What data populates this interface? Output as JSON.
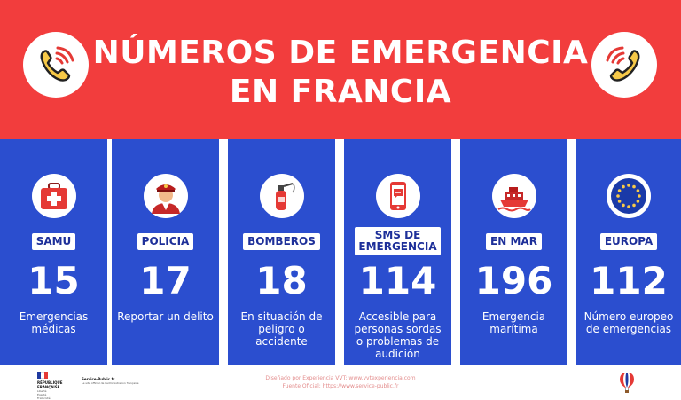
{
  "header": {
    "title_line1": "NÚMEROS DE EMERGENCIA",
    "title_line2": "EN FRANCIA",
    "icon": "phone-ringing-icon",
    "bg_color": "#f23d3d"
  },
  "columns": [
    {
      "label": "SAMU",
      "number": "15",
      "description": "Emergencias médicas",
      "icon": "first-aid-kit-icon"
    },
    {
      "label": "POLICIA",
      "number": "17",
      "description": "Reportar un delito",
      "icon": "police-officer-icon"
    },
    {
      "label": "BOMBEROS",
      "number": "18",
      "description": "En situación de peligro o accidente",
      "icon": "fire-extinguisher-icon"
    },
    {
      "label_line1": "SMS DE",
      "label_line2": "EMERGENCIA",
      "number": "114",
      "description": "Accesible para personas sordas o problemas de audición",
      "icon": "sms-phone-icon"
    },
    {
      "label": "EN MAR",
      "number": "196",
      "description": "Emergencia marítima",
      "icon": "ship-icon"
    },
    {
      "label": "EUROPA",
      "number": "112",
      "description": "Número europeo de emergencias",
      "icon": "eu-flag-icon"
    }
  ],
  "colors": {
    "column_blue": "#2b4ecf",
    "label_text": "#1d2f99",
    "credits_text": "#e38d8d"
  },
  "footer": {
    "rf_line1": "RÉPUBLIQUE",
    "rf_line2": "FRANÇAISE",
    "rf_motto_1": "Liberté",
    "rf_motto_2": "Égalité",
    "rf_motto_3": "Fraternité",
    "sp_name": "Service-Public.fr",
    "sp_sub": "Le site officiel de l'administration française",
    "credit_line1": "Diseñado por Experiencia VVT: www.vvtexperiencia.com",
    "credit_line2": "Fuente Oficial: https://www.service-public.fr",
    "logo": "hot-air-balloon-icon"
  }
}
